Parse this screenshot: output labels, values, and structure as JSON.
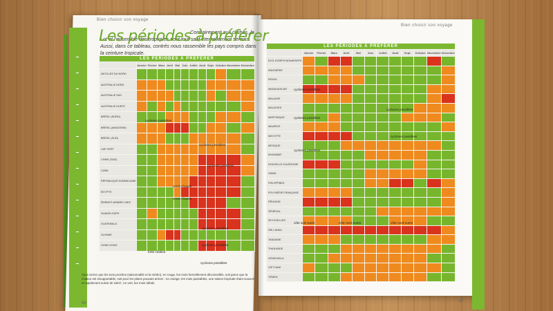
{
  "header_left": "Bien choisir son voyage",
  "header_right": "Bien choisir son voyage",
  "title": "Les périodes à préférer",
  "intro": "Contrairement aux clichés, le Lot et l'ensemble des tropiques sont tout sauf éternellement sereins. Aussi, dans ce tableau, contrés nous rassemble les pays compris dans la ceinture tropicale.",
  "band": "LES PÉRIODES À PRÉFÉRER",
  "months": [
    "Janvier",
    "Février",
    "Mars",
    "Avril",
    "Mai",
    "Juin",
    "Juillet",
    "Août",
    "Sept.",
    "Octobre",
    "Novembre",
    "Décembre"
  ],
  "left_countries": [
    "ANTILLES DU NORD",
    "AUSTRALIE NORD",
    "AUSTRALIE SUD",
    "AUSTRALIE OUEST",
    "BRÉSIL (NORD)",
    "BRÉSIL (AMAZONIE)",
    "BRÉSIL (SUD)",
    "CAP VERT",
    "CHINE (SUD)",
    "CUBA",
    "RÉPUBLIQUE DOMINICAINE",
    "ÉGYPTE",
    "ÉMIRATS ARABES UNIS",
    "GUADELOUPE",
    "GUATEMALA",
    "GUYANE",
    "HONG KONG"
  ],
  "right_countries": [
    "ÎLES JOSEPH BONAPARTE",
    "INDONÉSIE",
    "KENYA",
    "MADAGASCAR",
    "MALAISIE",
    "MALDIVES",
    "MARTINIQUE",
    "MAURICE",
    "MAYOTTE",
    "MEXIQUE",
    "MYANMAR",
    "NOUVELLE-CALÉDONIE",
    "OMAN",
    "PHILIPPINES",
    "POLYNÉSIE FRANÇAISE",
    "RÉUNION",
    "SÉNÉGAL",
    "SEYCHELLES",
    "SRI LANKA",
    "TANZANIE",
    "THAÏLANDE",
    "VENEZUELA",
    "VIET NAM",
    "YÉMEN"
  ],
  "left_grid": [
    "GGGGGGGGGOGG",
    "OOOGGGGGOOOO",
    "OOOOGGGGOGOO",
    "OGOGOGGGGGGO",
    "GGGOOOGGGOOG",
    "OOORRRGGOOGO",
    "OOOGGGOOOOOG",
    "GGOOOOOOOOOG",
    "GGOOOOORRRRO",
    "GGOOOOORRRRO",
    "GGOOOORRRRRG",
    "GGGGORRRRRRG",
    "GGGGGGRRRRGG",
    "GOGGGGGRRRRG",
    "GGGGGGGRRRRG",
    "GGORRGGGGGGG",
    "GGGGGGGRRRGG"
  ],
  "right_grid": [
    "OGRRGGGGGGRG",
    "OOOOGGGGGGGO",
    "GGOOOGGGGGGO",
    "RRRRGGGGGGOO",
    "OOOOGGGGGGOR",
    "GGGGGGGGGOOO",
    "GGOGGGGGOOOG",
    "OOOGGGGGGGGO",
    "RRRRGGGGGGGG",
    "GGGOOOOOOOOG",
    "GGGGGOOOOOGG",
    "RRRGGGGGGOGG",
    "GGGGGOOOOOGG",
    "GGGGGOORRGRO",
    "OOOOGGGGGGGO",
    "RRRRGGGGGGGO",
    "GGGGGGOOOOOO",
    "OOOOGGGOOOGG",
    "RRRRRRRRRRRO",
    "OOOGGGGGGGOO",
    "GGGOOOOOOOOG",
    "GGOOOOOOOOGG",
    "OGGGOOOOOOOG",
    "GGGOOOOOOOGG"
  ],
  "left_notes": [
    "cyclones possibles",
    "cyclones possibles",
    "cyclones possibles",
    "vents chauds",
    "vents chauds",
    "cyclones possibles",
    "cyclones possibles",
    "forte chaleur",
    "cyclones possibles"
  ],
  "right_notes": [
    "cyclones possibles",
    "cyclones possibles",
    "cyclones possibles",
    "cyclones possibles",
    "cyclones possibles",
    "côte sud-ouest",
    "côte nord-ouest",
    "côte nord-ouest"
  ],
  "footnote": "Vous verrez que les tons proches (saisonnalité et la météo), en rouge, les mois formellement déconseillés, soit parce que la chaleur est insupportable, soit pour les pluies pouvant arriver : en orange, les mois passables, une saison tropicale étant souvent et rapidement suivie de soleil ; en vert, les mois idéals.",
  "page_left": "66",
  "page_right": "67",
  "colors": {
    "green": "#77b62c",
    "orange": "#ef8a1e",
    "red": "#d9321d",
    "brand": "#7cb82f"
  }
}
